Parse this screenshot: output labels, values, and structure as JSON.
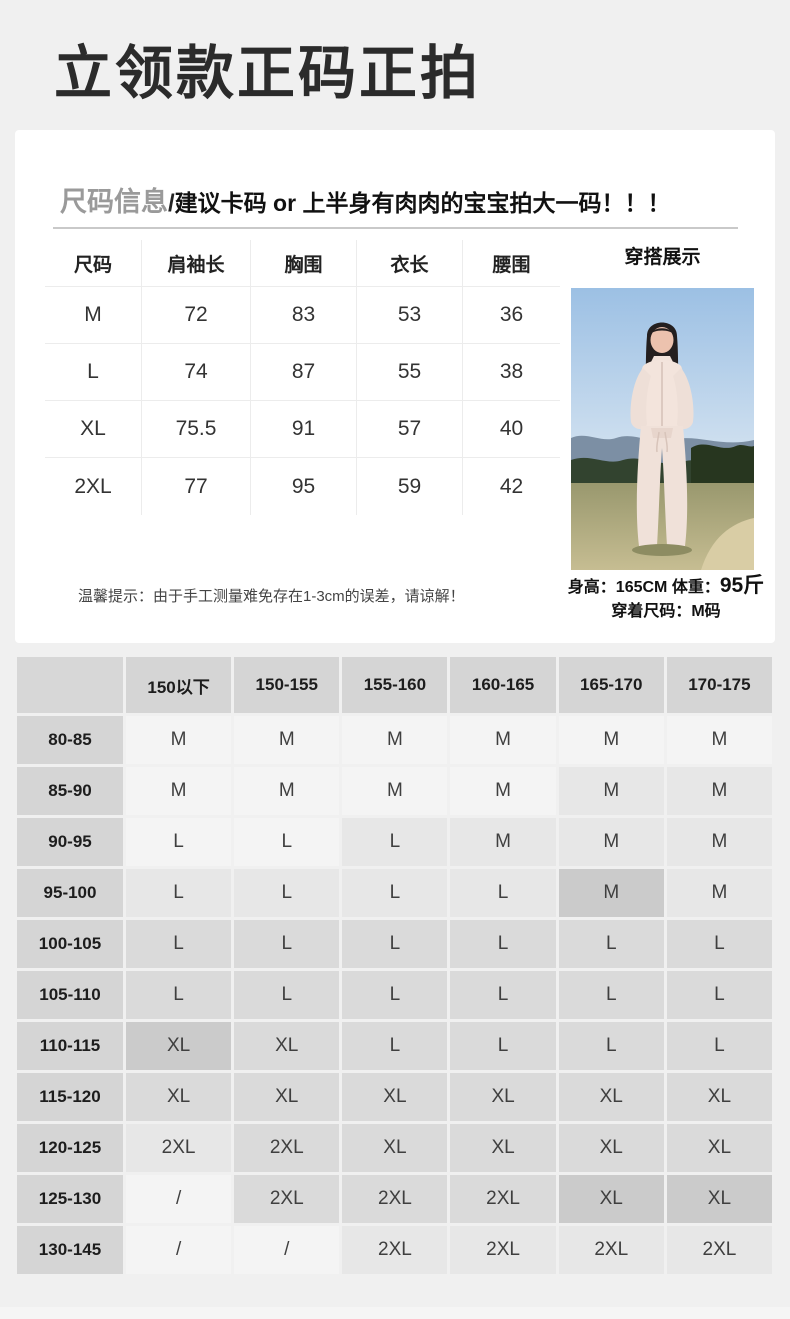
{
  "title": {
    "text": "立领款正码正拍"
  },
  "size_card": {
    "heading_gray": "尺码信息",
    "heading_slash": "/",
    "heading_black": "建议卡码 or 上半身有肉肉的宝宝拍大一码！！！",
    "table": {
      "headers": [
        "尺码",
        "肩袖长",
        "胸围",
        "衣长",
        "腰围"
      ],
      "rows": [
        {
          "size": "M",
          "values": [
            "72",
            "83",
            "53",
            "36"
          ]
        },
        {
          "size": "L",
          "values": [
            "74",
            "87",
            "55",
            "38"
          ]
        },
        {
          "size": "XL",
          "values": [
            "75.5",
            "91",
            "57",
            "40"
          ]
        },
        {
          "size": "2XL",
          "values": [
            "77",
            "95",
            "59",
            "42"
          ]
        }
      ]
    },
    "display": {
      "header": "穿搭展示",
      "photo": "model-outdoor-photo",
      "info_line1_label": "身高：165CM 体重：",
      "info_line1_value": "95斤",
      "info_line2": "穿着尺码：M码"
    },
    "note": "温馨提示：由于手工测量难免存在1-3cm的误差，请谅解！"
  },
  "size_matrix": {
    "corner_label": "",
    "height_headers": [
      "150以下",
      "150-155",
      "155-160",
      "160-165",
      "165-170",
      "170-175"
    ],
    "rows": [
      {
        "weight": "80-85",
        "cells": [
          "M",
          "M",
          "M",
          "M",
          "M",
          "M"
        ],
        "shades": [
          0,
          0,
          0,
          0,
          0,
          0
        ]
      },
      {
        "weight": "85-90",
        "cells": [
          "M",
          "M",
          "M",
          "M",
          "M",
          "M"
        ],
        "shades": [
          0,
          0,
          0,
          0,
          1,
          1
        ]
      },
      {
        "weight": "90-95",
        "cells": [
          "L",
          "L",
          "L",
          "M",
          "M",
          "M"
        ],
        "shades": [
          0,
          0,
          1,
          1,
          1,
          1
        ]
      },
      {
        "weight": "95-100",
        "cells": [
          "L",
          "L",
          "L",
          "L",
          "M",
          "M"
        ],
        "shades": [
          1,
          1,
          1,
          1,
          3,
          1
        ]
      },
      {
        "weight": "100-105",
        "cells": [
          "L",
          "L",
          "L",
          "L",
          "L",
          "L"
        ],
        "shades": [
          2,
          2,
          2,
          2,
          2,
          2
        ]
      },
      {
        "weight": "105-110",
        "cells": [
          "L",
          "L",
          "L",
          "L",
          "L",
          "L"
        ],
        "shades": [
          2,
          2,
          2,
          2,
          2,
          2
        ]
      },
      {
        "weight": "110-115",
        "cells": [
          "XL",
          "XL",
          "L",
          "L",
          "L",
          "L"
        ],
        "shades": [
          3,
          2,
          2,
          2,
          2,
          2
        ]
      },
      {
        "weight": "115-120",
        "cells": [
          "XL",
          "XL",
          "XL",
          "XL",
          "XL",
          "XL"
        ],
        "shades": [
          2,
          2,
          2,
          2,
          2,
          2
        ]
      },
      {
        "weight": "120-125",
        "cells": [
          "2XL",
          "2XL",
          "XL",
          "XL",
          "XL",
          "XL"
        ],
        "shades": [
          1,
          2,
          2,
          2,
          2,
          2
        ]
      },
      {
        "weight": "125-130",
        "cells": [
          "/",
          "2XL",
          "2XL",
          "2XL",
          "XL",
          "XL"
        ],
        "shades": [
          0,
          2,
          2,
          2,
          3,
          3
        ]
      },
      {
        "weight": "130-145",
        "cells": [
          "/",
          "/",
          "2XL",
          "2XL",
          "2XL",
          "2XL"
        ],
        "shades": [
          0,
          0,
          1,
          1,
          1,
          1
        ]
      }
    ],
    "shade_colors": [
      "#f4f4f4",
      "#e7e7e7",
      "#dadada",
      "#cbcbcb"
    ]
  },
  "colors": {
    "page_background": "#f0f0f0",
    "card_background": "#ffffff",
    "title_text": "#2b2b2b",
    "matrix_header_bg": "#d5d5d5",
    "table_line": "#ececec"
  }
}
